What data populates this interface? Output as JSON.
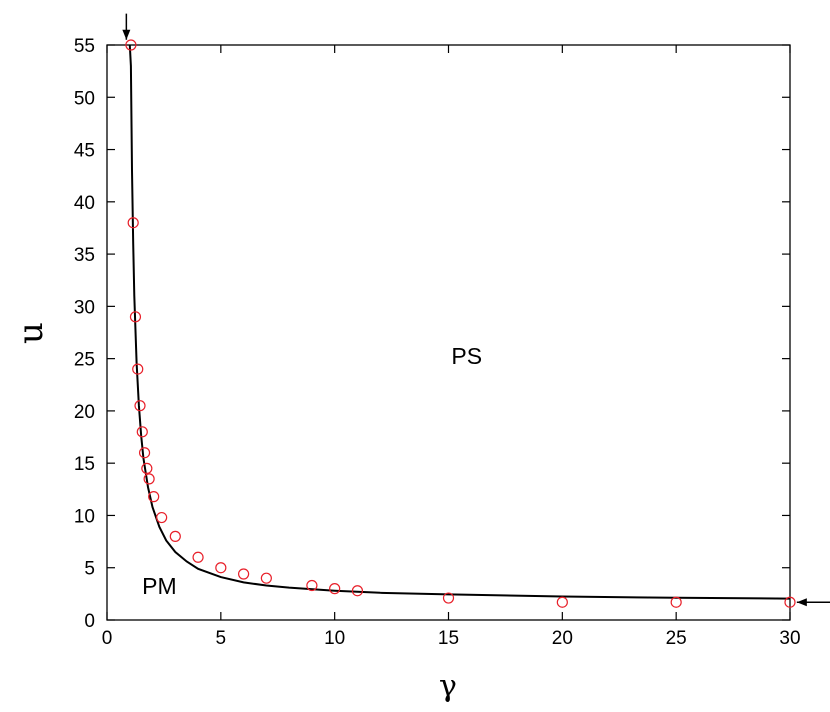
{
  "chart_data": {
    "type": "scatter",
    "xlabel": "γ",
    "ylabel": "u",
    "xlim": [
      0,
      30
    ],
    "ylim": [
      0,
      55
    ],
    "x_ticks": [
      0,
      5,
      10,
      15,
      20,
      25,
      30
    ],
    "y_ticks": [
      0,
      5,
      10,
      15,
      20,
      25,
      30,
      35,
      40,
      45,
      50,
      55
    ],
    "grid": false,
    "legend": "none",
    "series": [
      {
        "kind": "points",
        "marker": "open-circle",
        "color": "#e8202a",
        "x": [
          1.05,
          1.15,
          1.25,
          1.35,
          1.45,
          1.55,
          1.65,
          1.75,
          1.85,
          2.05,
          2.4,
          3.0,
          4.0,
          5.0,
          6.0,
          7.0,
          9.0,
          10.0,
          11.0,
          15.0,
          20.0,
          25.0,
          30.0
        ],
        "y": [
          55.0,
          38.0,
          29.0,
          24.0,
          20.5,
          18.0,
          16.0,
          14.5,
          13.5,
          11.8,
          9.8,
          8.0,
          6.0,
          5.0,
          4.4,
          4.0,
          3.3,
          3.0,
          2.8,
          2.1,
          1.7,
          1.7,
          1.7
        ]
      },
      {
        "kind": "line",
        "color": "#000000",
        "x": [
          1.0,
          1.05,
          1.1,
          1.15,
          1.2,
          1.3,
          1.4,
          1.5,
          1.6,
          1.8,
          2.0,
          2.3,
          2.6,
          3.0,
          3.5,
          4.0,
          5.0,
          6.0,
          7.0,
          8.0,
          10.0,
          12.0,
          15.0,
          20.0,
          25.0,
          30.0
        ],
        "y": [
          56.0,
          53.0,
          43.0,
          36.0,
          31.0,
          24.6,
          20.5,
          17.6,
          15.5,
          12.7,
          10.8,
          8.9,
          7.6,
          6.5,
          5.6,
          4.9,
          4.1,
          3.6,
          3.3,
          3.1,
          2.8,
          2.6,
          2.45,
          2.25,
          2.12,
          2.05
        ]
      }
    ],
    "annotations": [
      {
        "text": "PS",
        "x": 15.8,
        "y": 24.5
      },
      {
        "text": "PM",
        "x": 2.3,
        "y": 2.5
      },
      {
        "type": "arrow",
        "direction": "down",
        "x": 0.85,
        "y_from": 58.0,
        "y_to": 55.5
      },
      {
        "type": "arrow",
        "direction": "left",
        "y": 1.7,
        "x_from": 31.8,
        "x_to": 30.3
      }
    ]
  }
}
